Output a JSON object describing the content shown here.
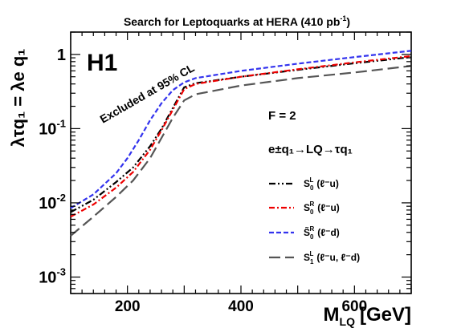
{
  "chart_data": {
    "type": "line",
    "title": "Search for Leptoquarks at HERA (410 pb",
    "title_sup": "-1",
    "title_end": ")",
    "experiment_label": "H1",
    "excluded_label": "Excluded at 95% CL",
    "f_label": "F = 2",
    "process_label": "e±q₁→LQ→τq₁",
    "ylabel": "λτq₁ = λe q₁",
    "xlabel_main": "M",
    "xlabel_sub": "LQ",
    "xlabel_unit": "[GeV]",
    "xlim": [
      100,
      700
    ],
    "ylim": [
      0.0006,
      2
    ],
    "yscale": "log",
    "x_ticks": [
      200,
      400,
      600
    ],
    "y_ticks": [
      {
        "value": 0.001,
        "base": "10",
        "exp": "-3"
      },
      {
        "value": 0.01,
        "base": "10",
        "exp": "-2"
      },
      {
        "value": 0.1,
        "base": "10",
        "exp": "-1"
      },
      {
        "value": 1,
        "base": "1",
        "exp": ""
      }
    ],
    "series": [
      {
        "name": "S0L (ℓ⁻u)",
        "lq": "S",
        "sub": "0",
        "sup": "L",
        "tilde": false,
        "channel": "(ℓ⁻u)",
        "color": "#000000",
        "dash": "8,3,2,3,2,3",
        "x": [
          100,
          140,
          180,
          210,
          240,
          260,
          280,
          300,
          320,
          400,
          500,
          600,
          700
        ],
        "y": [
          0.0075,
          0.011,
          0.019,
          0.03,
          0.058,
          0.1,
          0.19,
          0.36,
          0.41,
          0.5,
          0.62,
          0.76,
          0.92
        ]
      },
      {
        "name": "S0R (ℓ⁻u)",
        "lq": "S",
        "sub": "0",
        "sup": "R",
        "tilde": false,
        "channel": "(ℓ⁻u)",
        "color": "#ee0000",
        "dash": "7,3,2,3",
        "x": [
          100,
          140,
          180,
          210,
          240,
          260,
          280,
          300,
          320,
          400,
          500,
          600,
          700
        ],
        "y": [
          0.0065,
          0.0095,
          0.016,
          0.026,
          0.052,
          0.095,
          0.18,
          0.34,
          0.4,
          0.5,
          0.63,
          0.78,
          0.95
        ]
      },
      {
        "name": "S̃0R (ℓ⁻d)",
        "lq": "S",
        "sub": "0",
        "sup": "R",
        "tilde": true,
        "channel": "(ℓ⁻d)",
        "color": "#3333ee",
        "dash": "6,3",
        "x": [
          100,
          140,
          180,
          200,
          220,
          240,
          260,
          280,
          300,
          320,
          400,
          500,
          600,
          700
        ],
        "y": [
          0.0085,
          0.013,
          0.025,
          0.04,
          0.07,
          0.13,
          0.22,
          0.33,
          0.42,
          0.48,
          0.6,
          0.75,
          0.92,
          1.12
        ]
      },
      {
        "name": "S1L (ℓ⁻u, ℓ⁻d)",
        "lq": "S",
        "sub": "1",
        "sup": "L",
        "tilde": false,
        "channel": "(ℓ⁻u, ℓ⁻d)",
        "color": "#555555",
        "dash": "14,6",
        "x": [
          100,
          140,
          180,
          210,
          240,
          260,
          280,
          300,
          320,
          400,
          500,
          600,
          700
        ],
        "y": [
          0.0036,
          0.0065,
          0.012,
          0.02,
          0.04,
          0.075,
          0.14,
          0.24,
          0.29,
          0.38,
          0.48,
          0.57,
          0.7
        ]
      }
    ]
  }
}
